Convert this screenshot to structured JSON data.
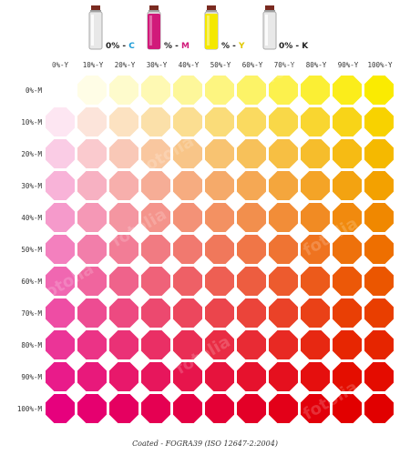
{
  "legend": {
    "cyan": {
      "value": "0%",
      "channel": "C",
      "bottle_color": "#e8e8e8",
      "accent": "#1a9ad6"
    },
    "magenta": {
      "value": "%",
      "channel": "M",
      "bottle_color": "#d11a7a",
      "accent": "#d11a7a"
    },
    "yellow": {
      "value": "%",
      "channel": "Y",
      "bottle_color": "#f4e800",
      "accent": "#e0c800"
    },
    "black": {
      "value": "0%",
      "channel": "K",
      "bottle_color": "#e8e8e8",
      "accent": "#222222"
    }
  },
  "columns": [
    "0%-Y",
    "10%-Y",
    "20%-Y",
    "30%-Y",
    "40%-Y",
    "50%-Y",
    "60%-Y",
    "70%-Y",
    "80%-Y",
    "90%-Y",
    "100%-Y"
  ],
  "rows": [
    "0%-M",
    "10%-M",
    "20%-M",
    "30%-M",
    "40%-M",
    "50%-M",
    "60%-M",
    "70%-M",
    "80%-M",
    "90%-M",
    "100%-M"
  ],
  "footer": "Coated - FOGRA39 (ISO 12647-2:2004)",
  "stock_id": "#48886064",
  "watermark": "fotolia",
  "colors": {
    "paper": "#ffffff",
    "yellow_full": "#ffed00",
    "magenta_full": "#e6007e"
  }
}
